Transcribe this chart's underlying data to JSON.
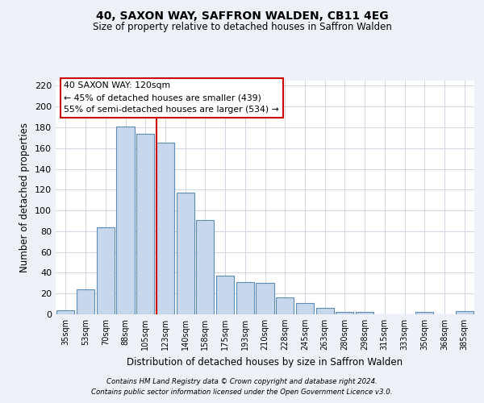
{
  "title": "40, SAXON WAY, SAFFRON WALDEN, CB11 4EG",
  "subtitle": "Size of property relative to detached houses in Saffron Walden",
  "xlabel": "Distribution of detached houses by size in Saffron Walden",
  "ylabel": "Number of detached properties",
  "categories": [
    "35sqm",
    "53sqm",
    "70sqm",
    "88sqm",
    "105sqm",
    "123sqm",
    "140sqm",
    "158sqm",
    "175sqm",
    "193sqm",
    "210sqm",
    "228sqm",
    "245sqm",
    "263sqm",
    "280sqm",
    "298sqm",
    "315sqm",
    "333sqm",
    "350sqm",
    "368sqm",
    "385sqm"
  ],
  "values": [
    4,
    24,
    84,
    181,
    174,
    165,
    117,
    91,
    37,
    31,
    30,
    16,
    11,
    6,
    2,
    2,
    0,
    0,
    2,
    0,
    3
  ],
  "bar_color": "#c8d8ec",
  "bar_edge_color": "#5b8db8",
  "vline_x_index": 5,
  "vline_color": "#cc0000",
  "annotation_title": "40 SAXON WAY: 120sqm",
  "annotation_line1": "← 45% of detached houses are smaller (439)",
  "annotation_line2": "55% of semi-detached houses are larger (534) →",
  "annotation_box_color": "#ffffff",
  "annotation_box_edge": "#cc0000",
  "ylim": [
    0,
    225
  ],
  "yticks": [
    0,
    20,
    40,
    60,
    80,
    100,
    120,
    140,
    160,
    180,
    200,
    220
  ],
  "bg_color": "#eef2f8",
  "plot_bg_color": "#ffffff",
  "grid_color": "#c8d0de",
  "footer1": "Contains HM Land Registry data © Crown copyright and database right 2024.",
  "footer2": "Contains public sector information licensed under the Open Government Licence v3.0."
}
